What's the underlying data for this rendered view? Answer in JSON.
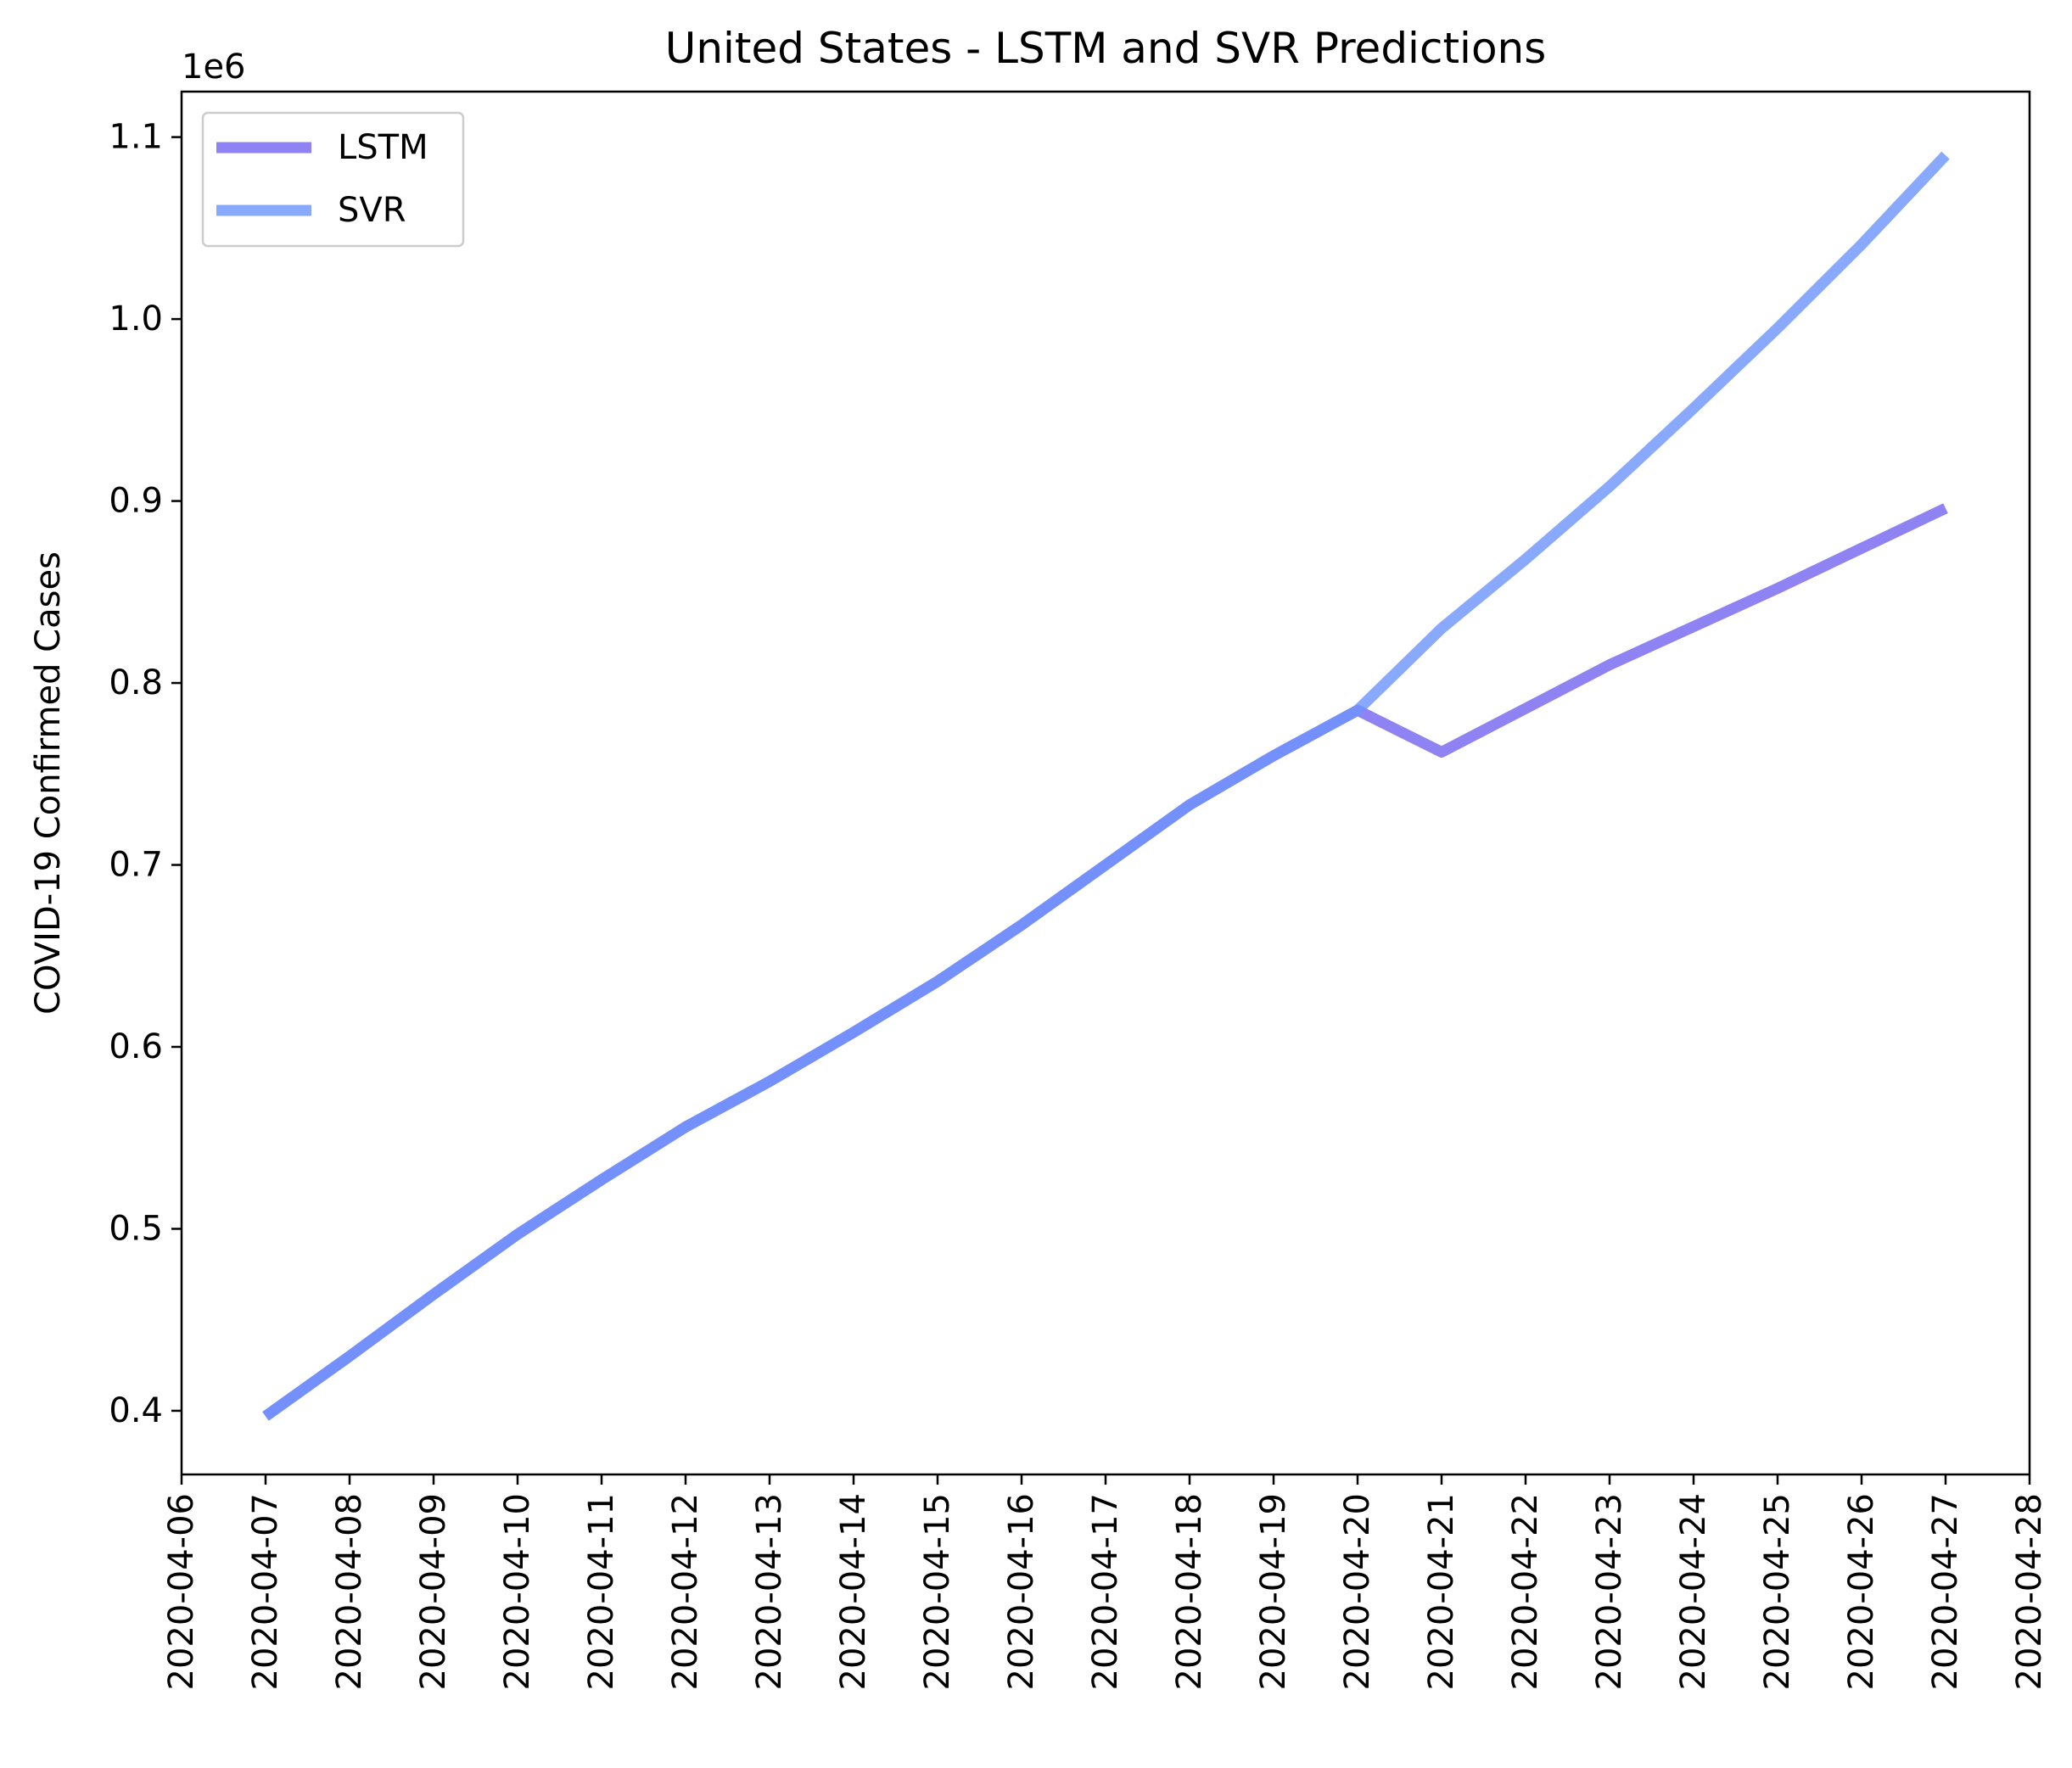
{
  "chart_data": {
    "type": "line",
    "title": "United States - LSTM and SVR Predictions",
    "xlabel": "",
    "ylabel": "COVID-19 Confirmed Cases",
    "y_offset_label": "1e6",
    "y_multiplier": 1000000,
    "x_ticks": [
      "2020-04-06",
      "2020-04-07",
      "2020-04-08",
      "2020-04-09",
      "2020-04-10",
      "2020-04-11",
      "2020-04-12",
      "2020-04-13",
      "2020-04-14",
      "2020-04-15",
      "2020-04-16",
      "2020-04-17",
      "2020-04-18",
      "2020-04-19",
      "2020-04-20",
      "2020-04-21",
      "2020-04-22",
      "2020-04-23",
      "2020-04-24",
      "2020-04-25",
      "2020-04-26",
      "2020-04-27",
      "2020-04-28"
    ],
    "y_ticks": [
      0.4,
      0.5,
      0.6,
      0.7,
      0.8,
      0.9,
      1.0,
      1.1
    ],
    "y_tick_labels": [
      "0.4",
      "0.5",
      "0.6",
      "0.7",
      "0.8",
      "0.9",
      "1.0",
      "1.1"
    ],
    "xlim": [
      "2020-04-06",
      "2020-04-28"
    ],
    "ylim": [
      0.365,
      1.125
    ],
    "grid": false,
    "legend_position": "top-left",
    "x": [
      "2020-04-07",
      "2020-04-08",
      "2020-04-09",
      "2020-04-10",
      "2020-04-11",
      "2020-04-12",
      "2020-04-13",
      "2020-04-14",
      "2020-04-15",
      "2020-04-16",
      "2020-04-17",
      "2020-04-18",
      "2020-04-19",
      "2020-04-20",
      "2020-04-21",
      "2020-04-22",
      "2020-04-23",
      "2020-04-24",
      "2020-04-25",
      "2020-04-26",
      "2020-04-27"
    ],
    "series": [
      {
        "name": "LSTM",
        "color": "#7b6cf0",
        "values": [
          0.397,
          0.43,
          0.464,
          0.497,
          0.527,
          0.556,
          0.581,
          0.608,
          0.636,
          0.667,
          0.7,
          0.733,
          0.76,
          0.785,
          0.762,
          0.786,
          0.81,
          0.831,
          0.852,
          0.874,
          0.896
        ]
      },
      {
        "name": "SVR",
        "color": "#6b93ff",
        "values": [
          0.397,
          0.43,
          0.464,
          0.497,
          0.527,
          0.556,
          0.581,
          0.608,
          0.636,
          0.667,
          0.7,
          0.733,
          0.76,
          0.785,
          0.83,
          0.868,
          0.908,
          0.951,
          0.995,
          1.041,
          1.09
        ]
      }
    ]
  }
}
